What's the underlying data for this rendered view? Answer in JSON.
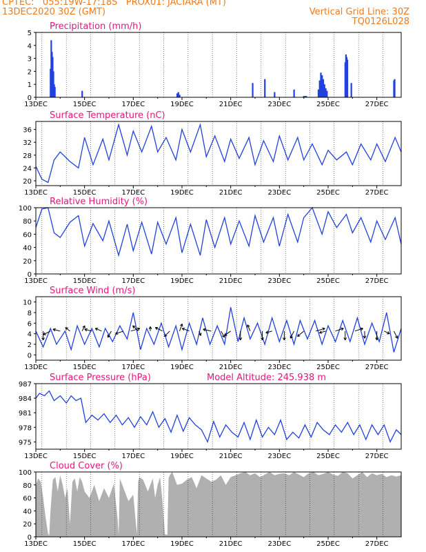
{
  "header": {
    "line1_left": "CPTEC:   055:19W-17:18S   PROX01: JACIARA (MT)",
    "line2_left": "13DEC2020 30Z (GMT)",
    "line2_right": "Vertical Grid Line: 30Z",
    "line3_right": "TQ0126L028"
  },
  "colors": {
    "header": "#f07a1a",
    "title": "#e8147c",
    "series": "#2040e0",
    "cloud": "#b0b0b0",
    "arrow": "#000000"
  },
  "chart_data": [
    {
      "type": "bar",
      "title": "Precipitation (mm/h)",
      "ylim": [
        0,
        5
      ],
      "yticks": [
        0,
        1,
        2,
        3,
        4,
        5
      ],
      "xticks": [
        "13DEC",
        "15DEC",
        "17DEC",
        "19DEC",
        "21DEC",
        "23DEC",
        "25DEC",
        "27DEC"
      ],
      "x_start_day": 13.0,
      "x_end_day": 28.0,
      "bars": [
        [
          13.6,
          2.2
        ],
        [
          13.63,
          4.4
        ],
        [
          13.66,
          3.5
        ],
        [
          13.69,
          3.1
        ],
        [
          13.72,
          2.0
        ],
        [
          13.75,
          1.0
        ],
        [
          13.78,
          0.8
        ],
        [
          14.9,
          0.5
        ],
        [
          18.8,
          0.3
        ],
        [
          18.85,
          0.4
        ],
        [
          18.9,
          0.2
        ],
        [
          21.9,
          1.1
        ],
        [
          22.4,
          1.4
        ],
        [
          22.8,
          0.4
        ],
        [
          23.6,
          0.6
        ],
        [
          24.0,
          0.1
        ],
        [
          24.05,
          0.1
        ],
        [
          24.1,
          0.1
        ],
        [
          24.6,
          0.6
        ],
        [
          24.65,
          1.3
        ],
        [
          24.7,
          1.9
        ],
        [
          24.75,
          1.7
        ],
        [
          24.8,
          1.4
        ],
        [
          24.85,
          1.0
        ],
        [
          24.9,
          0.7
        ],
        [
          24.95,
          0.5
        ],
        [
          25.7,
          2.7
        ],
        [
          25.73,
          3.3
        ],
        [
          25.76,
          3.1
        ],
        [
          25.79,
          2.9
        ],
        [
          25.95,
          1.1
        ],
        [
          27.7,
          1.3
        ],
        [
          27.73,
          1.4
        ]
      ]
    },
    {
      "type": "line",
      "title": "Surface Temperature (nC)",
      "ylim": [
        18.5,
        38.5
      ],
      "yticks": [
        20,
        24,
        28,
        32,
        36
      ],
      "xticks": [
        "13DEC",
        "15DEC",
        "17DEC",
        "19DEC",
        "21DEC",
        "23DEC",
        "25DEC",
        "27DEC"
      ],
      "x_start_day": 13.0,
      "x_end_day": 28.0,
      "x": [
        13.0,
        13.25,
        13.5,
        13.75,
        14.0,
        14.4,
        14.75,
        15.0,
        15.35,
        15.75,
        16.0,
        16.4,
        16.75,
        17.0,
        17.35,
        17.75,
        18.0,
        18.35,
        18.75,
        19.0,
        19.35,
        19.75,
        20.0,
        20.35,
        20.75,
        21.0,
        21.35,
        21.75,
        22.0,
        22.35,
        22.75,
        23.0,
        23.35,
        23.75,
        24.0,
        24.35,
        24.75,
        25.0,
        25.35,
        25.75,
        26.0,
        26.35,
        26.75,
        27.0,
        27.35,
        27.75,
        28.0
      ],
      "y": [
        24.5,
        20.5,
        19.5,
        26.5,
        29.0,
        26.0,
        24.0,
        33.5,
        25.0,
        33.0,
        26.5,
        37.5,
        28.0,
        35.5,
        29.0,
        37.0,
        29.0,
        33.5,
        26.5,
        36.0,
        29.0,
        37.5,
        27.5,
        34.0,
        26.0,
        33.0,
        27.0,
        33.5,
        25.0,
        32.5,
        26.0,
        34.0,
        26.5,
        33.5,
        26.5,
        31.5,
        25.0,
        29.5,
        26.5,
        29.0,
        25.0,
        31.5,
        26.5,
        31.5,
        26.0,
        33.5,
        29.0
      ]
    },
    {
      "type": "line",
      "title": "Relative Humidity (%)",
      "ylim": [
        0,
        100
      ],
      "yticks": [
        0,
        20,
        40,
        60,
        80,
        100
      ],
      "xticks": [
        "13DEC",
        "15DEC",
        "17DEC",
        "19DEC",
        "21DEC",
        "23DEC",
        "25DEC",
        "27DEC"
      ],
      "x_start_day": 13.0,
      "x_end_day": 28.0,
      "x": [
        13.0,
        13.25,
        13.5,
        13.75,
        14.0,
        14.4,
        14.75,
        15.0,
        15.35,
        15.75,
        16.0,
        16.4,
        16.75,
        17.0,
        17.35,
        17.75,
        18.0,
        18.35,
        18.75,
        19.0,
        19.35,
        19.75,
        20.0,
        20.35,
        20.75,
        21.0,
        21.35,
        21.75,
        22.0,
        22.35,
        22.75,
        23.0,
        23.35,
        23.75,
        24.0,
        24.35,
        24.75,
        25.0,
        25.35,
        25.75,
        26.0,
        26.35,
        26.75,
        27.0,
        27.35,
        27.75,
        28.0
      ],
      "y": [
        70.0,
        98.0,
        100.0,
        62.0,
        55.0,
        78.0,
        88.0,
        42.0,
        76.0,
        50.0,
        80.0,
        28.0,
        75.0,
        35.0,
        78.0,
        30.0,
        78.0,
        45.0,
        85.0,
        32.0,
        75.0,
        28.0,
        82.0,
        40.0,
        85.0,
        45.0,
        80.0,
        42.0,
        88.0,
        48.0,
        85.0,
        42.0,
        90.0,
        48.0,
        85.0,
        100.0,
        60.0,
        94.0,
        70.0,
        90.0,
        62.0,
        85.0,
        48.0,
        80.0,
        52.0,
        85.0,
        45.0
      ]
    },
    {
      "type": "line",
      "title": "Surface Wind (m/s)",
      "ylim": [
        -1,
        11
      ],
      "yticks": [
        0,
        2,
        4,
        6,
        8,
        10
      ],
      "xticks": [
        "13DEC",
        "15DEC",
        "17DEC",
        "19DEC",
        "21DEC",
        "23DEC",
        "25DEC",
        "27DEC"
      ],
      "x_start_day": 13.0,
      "x_end_day": 28.0,
      "x": [
        13.0,
        13.3,
        13.6,
        13.85,
        14.2,
        14.45,
        14.7,
        15.0,
        15.3,
        15.6,
        15.85,
        16.15,
        16.45,
        16.75,
        17.0,
        17.3,
        17.55,
        17.85,
        18.15,
        18.45,
        18.75,
        19.0,
        19.3,
        19.6,
        19.85,
        20.15,
        20.45,
        20.75,
        21.0,
        21.3,
        21.55,
        21.8,
        22.1,
        22.4,
        22.7,
        23.0,
        23.3,
        23.6,
        23.85,
        24.15,
        24.45,
        24.75,
        25.0,
        25.3,
        25.6,
        25.9,
        26.2,
        26.5,
        26.8,
        27.1,
        27.4,
        27.7,
        28.0
      ],
      "y": [
        4.5,
        1.5,
        5.0,
        2.0,
        4.5,
        1.0,
        5.5,
        2.0,
        5.0,
        1.5,
        5.0,
        2.5,
        5.5,
        3.0,
        8.0,
        1.0,
        5.0,
        2.0,
        6.0,
        1.5,
        5.5,
        1.0,
        6.0,
        2.0,
        7.0,
        2.0,
        5.5,
        2.0,
        9.0,
        2.5,
        7.0,
        3.0,
        6.0,
        2.0,
        7.0,
        2.5,
        6.5,
        2.0,
        6.5,
        3.0,
        6.5,
        2.0,
        5.5,
        2.5,
        6.5,
        2.5,
        7.0,
        2.0,
        6.0,
        2.5,
        8.0,
        0.5,
        5.0
      ]
    },
    {
      "type": "line",
      "title": "Surface Pressure (hPa)",
      "annotation": "Model Altitude: 245.938  m",
      "ylim": [
        973.5,
        987
      ],
      "yticks": [
        975,
        978,
        981,
        984,
        987
      ],
      "xticks": [
        "13DEC",
        "15DEC",
        "17DEC",
        "19DEC",
        "21DEC",
        "23DEC",
        "25DEC",
        "27DEC"
      ],
      "x_start_day": 13.0,
      "x_end_day": 28.0,
      "x": [
        13.0,
        13.15,
        13.35,
        13.55,
        13.75,
        14.0,
        14.25,
        14.45,
        14.65,
        14.85,
        15.05,
        15.3,
        15.55,
        15.8,
        16.05,
        16.3,
        16.55,
        16.8,
        17.05,
        17.3,
        17.55,
        17.8,
        18.05,
        18.3,
        18.55,
        18.8,
        19.05,
        19.3,
        19.55,
        19.8,
        20.05,
        20.3,
        20.55,
        20.8,
        21.05,
        21.3,
        21.55,
        21.8,
        22.05,
        22.3,
        22.55,
        22.8,
        23.05,
        23.3,
        23.55,
        23.8,
        24.05,
        24.3,
        24.55,
        24.8,
        25.05,
        25.3,
        25.55,
        25.8,
        26.05,
        26.3,
        26.55,
        26.8,
        27.05,
        27.3,
        27.55,
        27.8,
        28.0
      ],
      "y": [
        984.0,
        985.0,
        984.5,
        985.5,
        983.5,
        984.5,
        983.0,
        984.5,
        983.5,
        984.0,
        979.0,
        980.5,
        979.5,
        980.8,
        979.0,
        980.5,
        978.5,
        980.0,
        978.0,
        980.2,
        978.5,
        981.2,
        978.0,
        979.8,
        977.0,
        980.5,
        977.2,
        980.0,
        978.5,
        977.5,
        975.0,
        979.2,
        976.0,
        978.5,
        977.0,
        976.0,
        979.0,
        975.5,
        979.5,
        976.0,
        978.0,
        976.5,
        979.5,
        975.5,
        977.0,
        975.8,
        978.5,
        976.0,
        979.0,
        977.5,
        976.5,
        978.5,
        977.0,
        979.0,
        976.5,
        978.5,
        975.5,
        978.5,
        976.5,
        978.5,
        975.0,
        977.5,
        976.5
      ]
    },
    {
      "type": "area",
      "title": "Cloud Cover (%)",
      "ylim": [
        0,
        100
      ],
      "yticks": [
        0,
        20,
        40,
        60,
        80,
        100
      ],
      "xticks": [
        "13DEC",
        "15DEC",
        "17DEC",
        "19DEC",
        "21DEC",
        "23DEC",
        "25DEC",
        "27DEC"
      ],
      "x_start_day": 13.0,
      "x_end_day": 28.0,
      "x": [
        13.0,
        13.1,
        13.2,
        13.3,
        13.4,
        13.5,
        13.55,
        13.6,
        13.7,
        13.8,
        13.9,
        14.0,
        14.1,
        14.2,
        14.3,
        14.4,
        14.5,
        14.6,
        14.7,
        14.8,
        14.9,
        15.0,
        15.2,
        15.4,
        15.6,
        15.8,
        16.0,
        16.2,
        16.35,
        16.4,
        16.45,
        16.6,
        16.8,
        17.0,
        17.15,
        17.2,
        17.25,
        17.4,
        17.6,
        17.8,
        17.9,
        18.0,
        18.1,
        18.2,
        18.3,
        18.4,
        18.45,
        18.5,
        18.6,
        18.7,
        18.8,
        19.0,
        19.2,
        19.4,
        19.6,
        19.8,
        20.0,
        20.2,
        20.4,
        20.6,
        20.8,
        21.0,
        21.2,
        21.4,
        21.6,
        21.8,
        22.0,
        22.2,
        22.4,
        22.6,
        22.8,
        23.0,
        23.2,
        23.4,
        23.6,
        23.8,
        24.0,
        24.2,
        24.4,
        24.6,
        24.8,
        25.0,
        25.2,
        25.4,
        25.6,
        25.8,
        26.0,
        26.2,
        26.4,
        26.6,
        26.8,
        27.0,
        27.2,
        27.4,
        27.6,
        27.8,
        28.0
      ],
      "y": [
        80,
        90,
        85,
        60,
        30,
        5,
        2,
        40,
        88,
        92,
        70,
        95,
        80,
        60,
        75,
        20,
        85,
        90,
        70,
        92,
        85,
        70,
        60,
        80,
        55,
        75,
        60,
        82,
        30,
        2,
        90,
        75,
        55,
        65,
        4,
        85,
        92,
        88,
        70,
        90,
        60,
        80,
        92,
        55,
        4,
        3,
        90,
        95,
        100,
        90,
        80,
        82,
        88,
        92,
        75,
        95,
        90,
        85,
        88,
        95,
        80,
        92,
        95,
        98,
        100,
        95,
        98,
        92,
        96,
        100,
        95,
        97,
        98,
        95,
        100,
        96,
        92,
        98,
        100,
        95,
        97,
        100,
        96,
        94,
        100,
        98,
        90,
        95,
        100,
        92,
        98,
        95,
        97,
        92,
        95,
        93,
        95
      ]
    }
  ],
  "wind_arrows": [
    [
      13.3,
      0,
      -1
    ],
    [
      13.6,
      -0.8,
      -0.4
    ],
    [
      14.0,
      -0.8,
      0.2
    ],
    [
      14.4,
      -0.5,
      0.4
    ],
    [
      14.9,
      0.3,
      0.6
    ],
    [
      15.3,
      -0.8,
      0.2
    ],
    [
      15.7,
      -0.7,
      0.3
    ],
    [
      16.1,
      -0.4,
      -0.7
    ],
    [
      16.6,
      -0.9,
      -0.3
    ],
    [
      16.9,
      1.0,
      0.3
    ],
    [
      17.2,
      -0.6,
      0.6
    ],
    [
      17.7,
      0.0,
      0.5
    ],
    [
      18.2,
      -0.8,
      0.4
    ],
    [
      18.5,
      -0.6,
      -0.6
    ],
    [
      18.9,
      0.3,
      0.8
    ],
    [
      19.3,
      -0.8,
      0.3
    ],
    [
      19.7,
      0.2,
      -0.5
    ],
    [
      20.2,
      -0.9,
      0.2
    ],
    [
      20.6,
      0.4,
      -0.7
    ],
    [
      21.0,
      -0.7,
      -0.5
    ],
    [
      21.4,
      0.0,
      -1.0
    ],
    [
      21.8,
      -0.3,
      0.7
    ],
    [
      22.3,
      0.0,
      -1.0
    ],
    [
      22.7,
      -0.7,
      -0.2
    ],
    [
      23.2,
      0.0,
      -1.0
    ],
    [
      23.6,
      -0.4,
      -0.8
    ],
    [
      24.0,
      -0.7,
      -0.6
    ],
    [
      24.5,
      1.0,
      0.3
    ],
    [
      24.9,
      -0.7,
      -0.2
    ],
    [
      25.3,
      0.9,
      0.3
    ],
    [
      25.7,
      0.0,
      -1.0
    ],
    [
      26.1,
      0.9,
      0.3
    ],
    [
      26.5,
      0.0,
      -0.8
    ],
    [
      27.0,
      0.0,
      -1.0
    ],
    [
      27.3,
      0.6,
      -0.3
    ],
    [
      27.7,
      0.4,
      -0.8
    ]
  ]
}
